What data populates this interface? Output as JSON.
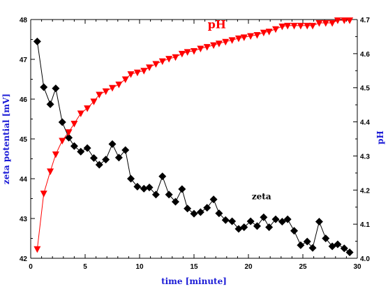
{
  "chart_data": {
    "type": "line",
    "x_axis": {
      "label": "time [minute]",
      "range": [
        0,
        30
      ],
      "ticks": [
        "0",
        "5",
        "10",
        "15",
        "20",
        "25",
        "30"
      ]
    },
    "y_left": {
      "label": "zeta potential [mV]",
      "range": [
        42,
        48
      ],
      "ticks": [
        "42",
        "43",
        "44",
        "45",
        "46",
        "47",
        "48"
      ]
    },
    "y_right": {
      "label": "pH",
      "range": [
        4.0,
        4.7
      ],
      "ticks": [
        "4.0",
        "4.1",
        "4.2",
        "4.3",
        "4.4",
        "4.5",
        "4.6",
        "4.7"
      ]
    },
    "series": [
      {
        "name": "zeta",
        "axis": "left",
        "marker": "diamond",
        "color": "#000000",
        "x": [
          0.6,
          1.2,
          1.8,
          2.3,
          2.9,
          3.5,
          4.0,
          4.6,
          5.2,
          5.8,
          6.3,
          6.9,
          7.5,
          8.1,
          8.7,
          9.2,
          9.8,
          10.4,
          10.9,
          11.5,
          12.1,
          12.7,
          13.3,
          13.9,
          14.4,
          15.0,
          15.6,
          16.2,
          16.8,
          17.3,
          17.9,
          18.5,
          19.1,
          19.6,
          20.2,
          20.8,
          21.4,
          21.9,
          22.5,
          23.1,
          23.6,
          24.2,
          24.8,
          25.4,
          25.9,
          26.5,
          27.1,
          27.7,
          28.2,
          28.8,
          29.3
        ],
        "y": [
          47.45,
          46.3,
          45.87,
          46.27,
          45.42,
          45.03,
          44.82,
          44.68,
          44.77,
          44.52,
          44.35,
          44.48,
          44.87,
          44.53,
          44.72,
          44.0,
          43.8,
          43.75,
          43.78,
          43.6,
          44.06,
          43.6,
          43.42,
          43.74,
          43.25,
          43.12,
          43.16,
          43.27,
          43.48,
          43.13,
          42.96,
          42.93,
          42.74,
          42.78,
          42.93,
          42.81,
          43.03,
          42.78,
          42.98,
          42.92,
          42.98,
          42.69,
          42.33,
          42.42,
          42.26,
          42.92,
          42.5,
          42.3,
          42.35,
          42.25,
          42.15
        ]
      },
      {
        "name": "pH",
        "axis": "right",
        "marker": "triangle-down",
        "color": "#ff0000",
        "x": [
          0.6,
          1.2,
          1.8,
          2.3,
          2.9,
          3.5,
          4.0,
          4.6,
          5.2,
          5.8,
          6.3,
          6.9,
          7.5,
          8.1,
          8.7,
          9.2,
          9.8,
          10.4,
          10.9,
          11.5,
          12.1,
          12.7,
          13.3,
          13.9,
          14.4,
          15.0,
          15.6,
          16.2,
          16.8,
          17.3,
          17.9,
          18.5,
          19.1,
          19.6,
          20.2,
          20.8,
          21.4,
          21.9,
          22.5,
          23.1,
          23.6,
          24.2,
          24.8,
          25.4,
          25.9,
          26.5,
          27.1,
          27.7,
          28.2,
          28.8,
          29.3
        ],
        "y": [
          4.027,
          4.19,
          4.255,
          4.305,
          4.345,
          4.37,
          4.395,
          4.425,
          4.44,
          4.46,
          4.48,
          4.49,
          4.5,
          4.51,
          4.525,
          4.54,
          4.545,
          4.55,
          4.56,
          4.57,
          4.578,
          4.585,
          4.59,
          4.6,
          4.605,
          4.608,
          4.615,
          4.62,
          4.625,
          4.63,
          4.635,
          4.64,
          4.645,
          4.648,
          4.652,
          4.655,
          4.662,
          4.665,
          4.672,
          4.68,
          4.682,
          4.682,
          4.682,
          4.682,
          4.682,
          4.69,
          4.69,
          4.69,
          4.698,
          4.698,
          4.698
        ]
      }
    ],
    "annotations": [
      {
        "text": "pH",
        "series": "pH"
      },
      {
        "text": "zeta",
        "series": "zeta"
      }
    ],
    "grid": false,
    "legend": "none"
  }
}
